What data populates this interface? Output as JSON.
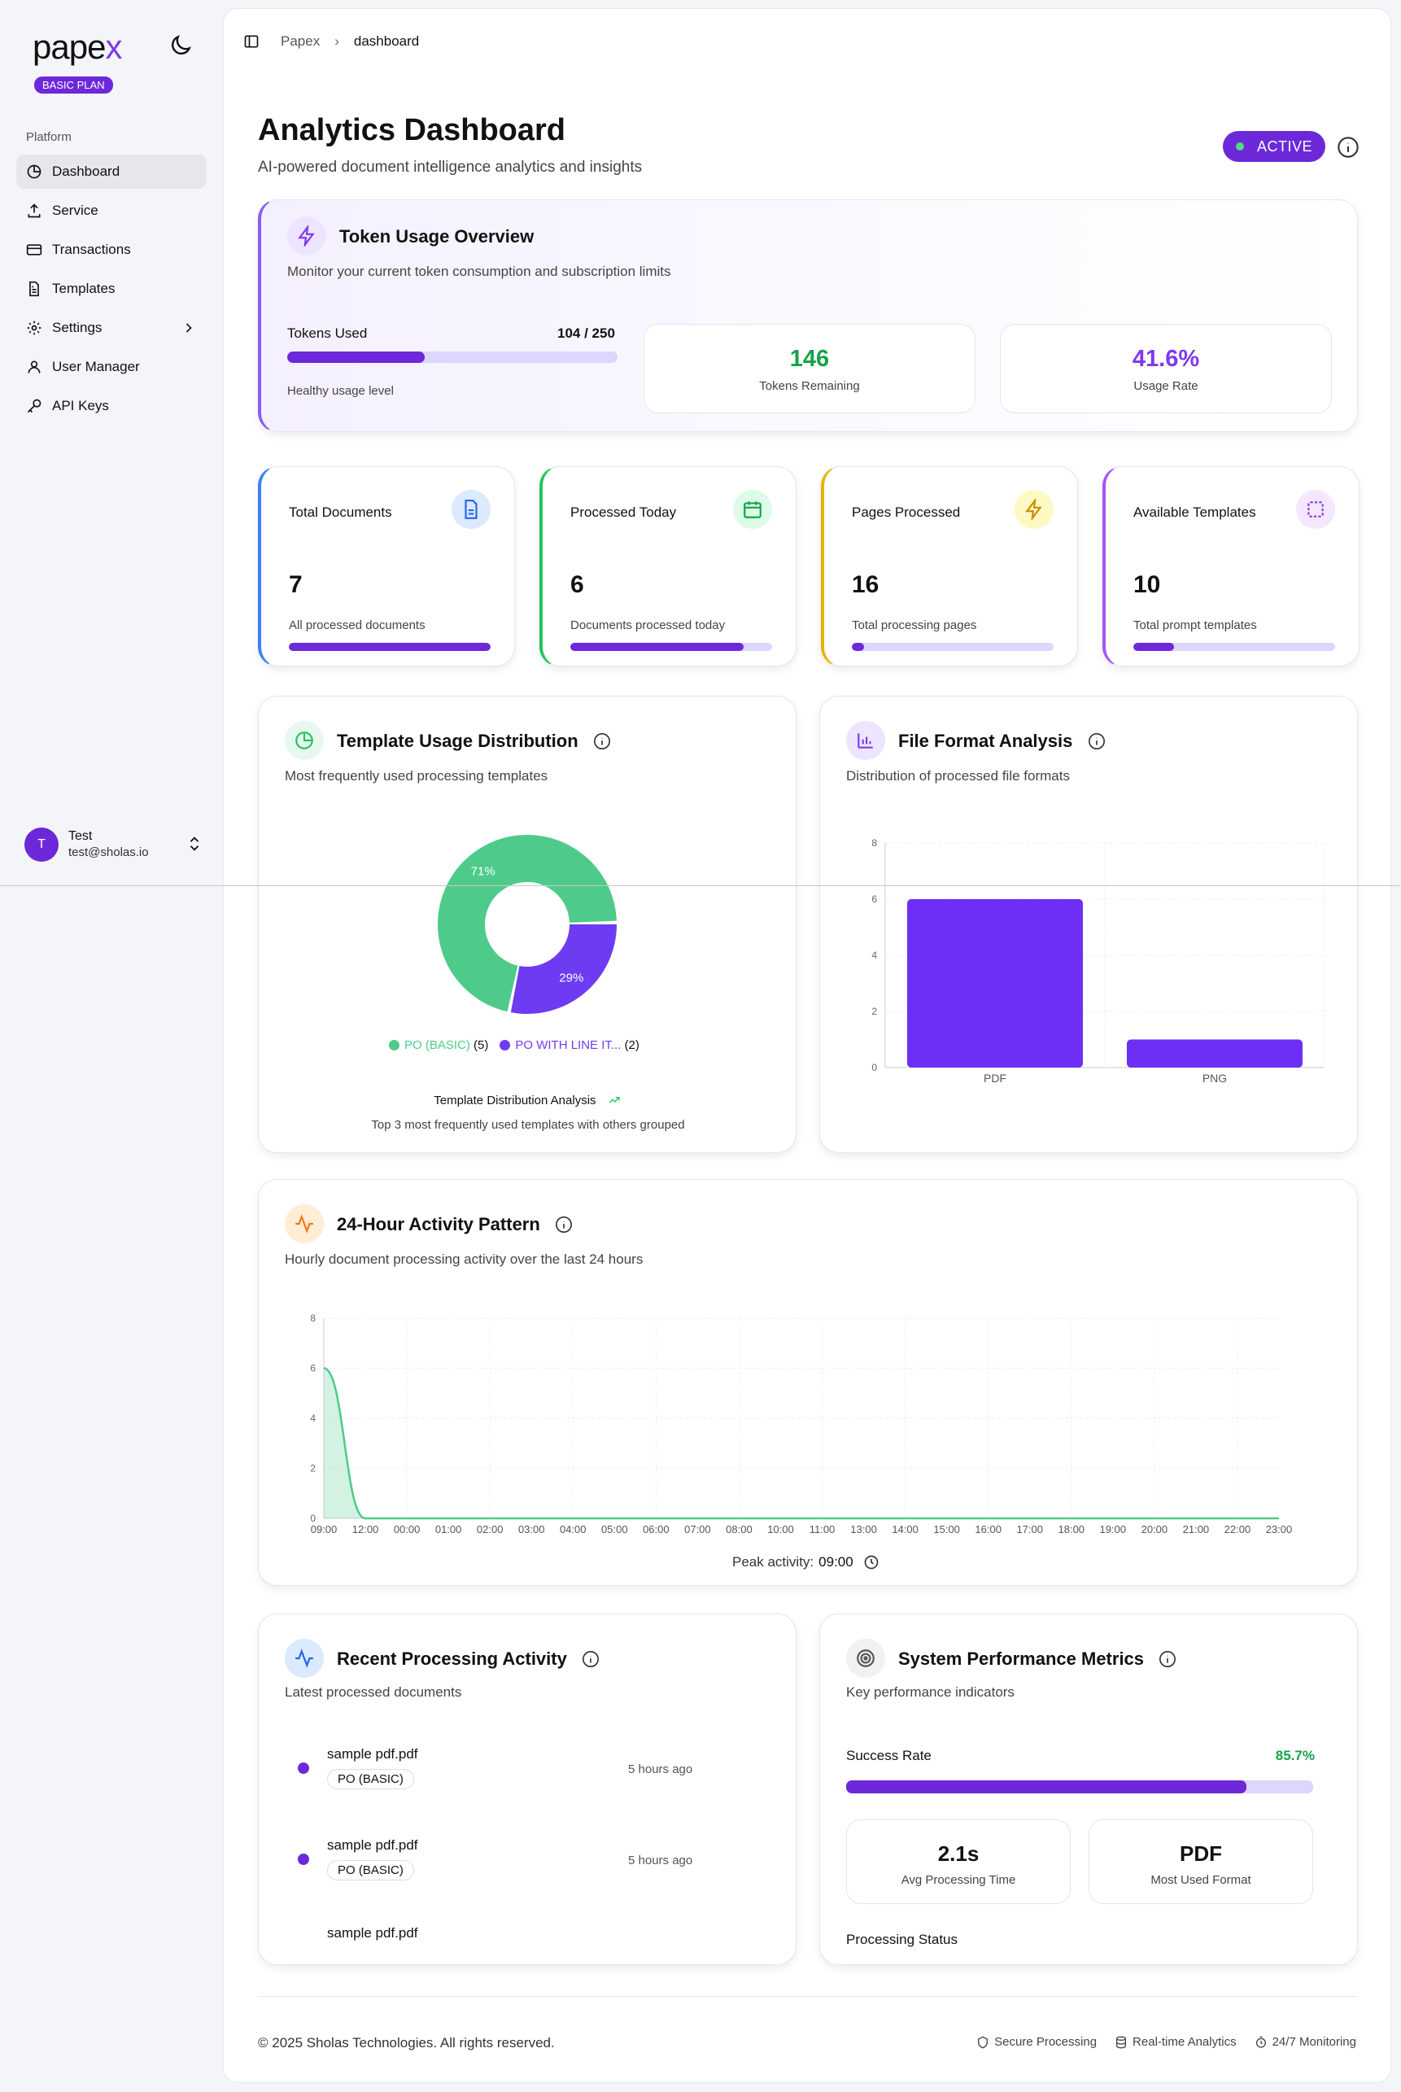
{
  "brand": {
    "logo_main": "pape",
    "logo_accent": "x",
    "plan": "BASIC PLAN"
  },
  "sidebar": {
    "heading": "Platform",
    "items": [
      {
        "label": "Dashboard"
      },
      {
        "label": "Service"
      },
      {
        "label": "Transactions"
      },
      {
        "label": "Templates"
      },
      {
        "label": "Settings"
      },
      {
        "label": "User Manager"
      },
      {
        "label": "API Keys"
      }
    ],
    "user": {
      "initial": "T",
      "name": "Test",
      "email": "test@sholas.io"
    }
  },
  "breadcrumb": {
    "root": "Papex",
    "current": "dashboard"
  },
  "header": {
    "title": "Analytics Dashboard",
    "subtitle": "AI-powered document intelligence analytics and insights",
    "status": "ACTIVE"
  },
  "token_usage": {
    "title": "Token Usage Overview",
    "subtitle": "Monitor your current token consumption and subscription limits",
    "used_label": "Tokens Used",
    "used_value": "104 / 250",
    "used_fraction": 0.416,
    "health": "Healthy usage level",
    "remaining_value": "146",
    "remaining_label": "Tokens Remaining",
    "rate_value": "41.6%",
    "rate_label": "Usage Rate"
  },
  "stats": [
    {
      "title": "Total Documents",
      "value": "7",
      "desc": "All processed documents",
      "fill": 1.0,
      "accent": "#3b82f6"
    },
    {
      "title": "Processed Today",
      "value": "6",
      "desc": "Documents processed today",
      "fill": 0.857,
      "accent": "#22c55e"
    },
    {
      "title": "Pages Processed",
      "value": "16",
      "desc": "Total processing pages",
      "fill": 0.06,
      "accent": "#eab308"
    },
    {
      "title": "Available Templates",
      "value": "10",
      "desc": "Total prompt templates",
      "fill": 0.2,
      "accent": "#a855f7"
    }
  ],
  "template_chart": {
    "title": "Template Usage Distribution",
    "subtitle": "Most frequently used processing templates",
    "analysis_title": "Template Distribution Analysis",
    "analysis_sub": "Top 3 most frequently used templates with others grouped"
  },
  "format_chart": {
    "title": "File Format Analysis",
    "subtitle": "Distribution of processed file formats"
  },
  "activity_chart": {
    "title": "24-Hour Activity Pattern",
    "subtitle": "Hourly document processing activity over the last 24 hours",
    "peak_label": "Peak activity:",
    "peak_value": "09:00"
  },
  "recent": {
    "title": "Recent Processing Activity",
    "subtitle": "Latest processed documents",
    "items": [
      {
        "name": "sample pdf.pdf",
        "tag": "PO (BASIC)",
        "time": "5 hours ago"
      },
      {
        "name": "sample pdf.pdf",
        "tag": "PO (BASIC)",
        "time": "5 hours ago"
      },
      {
        "name": "sample pdf.pdf"
      }
    ]
  },
  "performance": {
    "title": "System Performance Metrics",
    "subtitle": "Key performance indicators",
    "success_label": "Success Rate",
    "success_value": "85.7%",
    "success_fraction": 0.857,
    "avg_time_value": "2.1s",
    "avg_time_label": "Avg Processing Time",
    "format_value": "PDF",
    "format_label": "Most Used Format",
    "status_label": "Processing Status"
  },
  "footer": {
    "copyright": "© 2025 Sholas Technologies. All rights reserved.",
    "links": [
      "Secure Processing",
      "Real-time Analytics",
      "24/7 Monitoring"
    ]
  },
  "chart_data": [
    {
      "type": "pie",
      "categories": [
        "PO (BASIC)",
        "PO WITH LINE IT..."
      ],
      "values": [
        5,
        2
      ],
      "labels": [
        "71%",
        "29%"
      ],
      "legend_counts": [
        "(5)",
        "(2)"
      ],
      "colors": [
        "#4ecb8a",
        "#6d3cf2"
      ]
    },
    {
      "type": "bar",
      "categories": [
        "PDF",
        "PNG"
      ],
      "values": [
        6,
        1
      ],
      "ylim": [
        0,
        8
      ],
      "yticks": [
        "0",
        "2",
        "4",
        "6",
        "8"
      ],
      "color": "#6d2ef6",
      "grid": true
    },
    {
      "type": "area",
      "x": [
        "09:00",
        "12:00",
        "00:00",
        "01:00",
        "02:00",
        "03:00",
        "04:00",
        "05:00",
        "06:00",
        "07:00",
        "08:00",
        "10:00",
        "11:00",
        "13:00",
        "14:00",
        "15:00",
        "16:00",
        "17:00",
        "18:00",
        "19:00",
        "20:00",
        "21:00",
        "22:00",
        "23:00"
      ],
      "values": [
        6,
        0,
        0,
        0,
        0,
        0,
        0,
        0,
        0,
        0,
        0,
        0,
        0,
        0,
        0,
        0,
        0,
        0,
        0,
        0,
        0,
        0,
        0,
        0
      ],
      "ylim": [
        0,
        8
      ],
      "yticks": [
        "0",
        "2",
        "4",
        "6",
        "8"
      ],
      "color": "#4ecb8a",
      "grid": true
    }
  ]
}
